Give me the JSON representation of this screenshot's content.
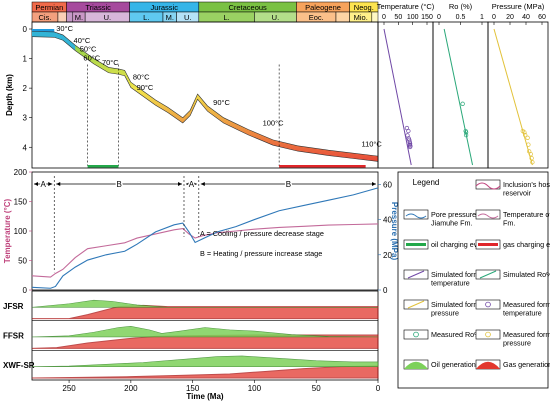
{
  "chart_data": {
    "type": "line",
    "x_axis": {
      "label": "Time (Ma)",
      "ticks": [
        250,
        200,
        150,
        100,
        50,
        0
      ],
      "range": [
        280,
        0
      ]
    },
    "stratigraphy": [
      {
        "name": "Permian",
        "start": 280,
        "end": 252,
        "color": "#f06a4a"
      },
      {
        "name": "Triassic",
        "start": 252,
        "end": 201,
        "color": "#a64a9d"
      },
      {
        "name": "Jurassic",
        "start": 201,
        "end": 145,
        "color": "#36b5e8"
      },
      {
        "name": "Cretaceous",
        "start": 145,
        "end": 66,
        "color": "#7ac143"
      },
      {
        "name": "Paleogene",
        "start": 66,
        "end": 23,
        "color": "#f7a35c"
      },
      {
        "name": "Neog.",
        "start": 23,
        "end": 0,
        "color": "#fde44f"
      }
    ],
    "sub_stages": [
      {
        "name": "Cis.",
        "start": 280,
        "end": 259,
        "color": "#f3a07e"
      },
      {
        "name": "",
        "start": 259,
        "end": 252,
        "color": "#fbcfb6"
      },
      {
        "name": "",
        "start": 252,
        "end": 247,
        "color": "#c69ac8"
      },
      {
        "name": "M.",
        "start": 247,
        "end": 237,
        "color": "#c997c6"
      },
      {
        "name": "U.",
        "start": 237,
        "end": 201,
        "color": "#d7b6d9"
      },
      {
        "name": "L.",
        "start": 201,
        "end": 174,
        "color": "#5fc9f0"
      },
      {
        "name": "M.",
        "start": 174,
        "end": 163,
        "color": "#86d4f2"
      },
      {
        "name": "U.",
        "start": 163,
        "end": 145,
        "color": "#b5e2f7"
      },
      {
        "name": "L.",
        "start": 145,
        "end": 100,
        "color": "#9ad163"
      },
      {
        "name": "U.",
        "start": 100,
        "end": 66,
        "color": "#b4de8a"
      },
      {
        "name": "Eoc.",
        "start": 66,
        "end": 34,
        "color": "#fbc08a"
      },
      {
        "name": "",
        "start": 34,
        "end": 23,
        "color": "#fdd4a5"
      },
      {
        "name": "Mio.",
        "start": 23,
        "end": 5,
        "color": "#fef08a"
      },
      {
        "name": "",
        "start": 5,
        "end": 0,
        "color": "#fff8c4"
      }
    ],
    "burial": {
      "ylabel": "Depth (km)",
      "y_ticks": [
        0,
        1,
        2,
        3,
        4
      ],
      "ylim": [
        0,
        4.6
      ],
      "top_curve": [
        [
          280,
          0.08
        ],
        [
          262,
          0.1
        ],
        [
          255,
          0.2
        ],
        [
          245,
          0.55
        ],
        [
          230,
          1.0
        ],
        [
          218,
          1.3
        ],
        [
          210,
          1.35
        ],
        [
          205,
          1.4
        ],
        [
          200,
          1.8
        ],
        [
          190,
          2.1
        ],
        [
          180,
          2.4
        ],
        [
          170,
          2.65
        ],
        [
          158,
          3.0
        ],
        [
          152,
          2.75
        ],
        [
          146,
          2.2
        ],
        [
          138,
          2.6
        ],
        [
          125,
          3.0
        ],
        [
          105,
          3.4
        ],
        [
          85,
          3.75
        ],
        [
          65,
          3.95
        ],
        [
          40,
          4.1
        ],
        [
          20,
          4.2
        ],
        [
          0,
          4.3
        ]
      ],
      "thickness": 0.18,
      "temperature_labels": [
        {
          "t": 262,
          "d": 0.1,
          "text": "30°C"
        },
        {
          "t": 248,
          "d": 0.5,
          "text": "40°C"
        },
        {
          "t": 243,
          "d": 0.8,
          "text": "50°C"
        },
        {
          "t": 240,
          "d": 1.1,
          "text": "60°C"
        },
        {
          "t": 225,
          "d": 1.25,
          "text": "70°C"
        },
        {
          "t": 200,
          "d": 1.75,
          "text": "80°C"
        },
        {
          "t": 197,
          "d": 2.1,
          "text": "90°C"
        },
        {
          "t": 135,
          "d": 2.6,
          "text": "90°C"
        },
        {
          "t": 95,
          "d": 3.3,
          "text": "100°C"
        },
        {
          "t": 15,
          "d": 4.0,
          "text": "110°C"
        }
      ],
      "oil_charging": [
        235,
        210
      ],
      "gas_charging": [
        80,
        10
      ]
    },
    "temperature_pressure": {
      "ylabel_left": "Temperature (°C)",
      "ylabel_right": "Pressure (MPa)",
      "y_left_ticks": [
        0,
        50,
        100,
        150,
        200
      ],
      "ylim_left": [
        0,
        200
      ],
      "y_right_ticks": [
        0,
        20,
        40,
        60
      ],
      "ylim_right": [
        0,
        67
      ],
      "temperature": [
        [
          280,
          24
        ],
        [
          265,
          22
        ],
        [
          261,
          28
        ],
        [
          255,
          35
        ],
        [
          245,
          55
        ],
        [
          235,
          70
        ],
        [
          220,
          75
        ],
        [
          205,
          80
        ],
        [
          195,
          88
        ],
        [
          180,
          95
        ],
        [
          165,
          102
        ],
        [
          158,
          104
        ],
        [
          153,
          95
        ],
        [
          148,
          88
        ],
        [
          142,
          92
        ],
        [
          130,
          97
        ],
        [
          115,
          100
        ],
        [
          100,
          103
        ],
        [
          80,
          106
        ],
        [
          60,
          108
        ],
        [
          40,
          110
        ],
        [
          20,
          111
        ],
        [
          0,
          112
        ]
      ],
      "pressure": [
        [
          280,
          1.5
        ],
        [
          265,
          1
        ],
        [
          261,
          2
        ],
        [
          255,
          8
        ],
        [
          245,
          13
        ],
        [
          235,
          17
        ],
        [
          220,
          20
        ],
        [
          205,
          22
        ],
        [
          195,
          26
        ],
        [
          180,
          33
        ],
        [
          165,
          37
        ],
        [
          158,
          38
        ],
        [
          153,
          33
        ],
        [
          148,
          27
        ],
        [
          142,
          29
        ],
        [
          130,
          33
        ],
        [
          115,
          36
        ],
        [
          100,
          40
        ],
        [
          80,
          45
        ],
        [
          60,
          48
        ],
        [
          40,
          51
        ],
        [
          20,
          54
        ],
        [
          0,
          58
        ]
      ],
      "stages": [
        {
          "label": "A",
          "start": 280,
          "end": 262
        },
        {
          "label": "B",
          "start": 262,
          "end": 157
        },
        {
          "label": "A",
          "start": 157,
          "end": 145
        },
        {
          "label": "B",
          "start": 145,
          "end": 0
        }
      ],
      "annotation_a": "A = Cooling / pressure decrease stage",
      "annotation_b": "B = Heating / pressure increase stage"
    },
    "generation": {
      "rows": [
        {
          "name": "JFSR",
          "oil": [
            [
              280,
              0
            ],
            [
              250,
              0.3
            ],
            [
              230,
              0.6
            ],
            [
              215,
              0.5
            ],
            [
              195,
              0.2
            ],
            [
              170,
              0
            ],
            [
              0,
              0
            ]
          ],
          "gas": [
            [
              280,
              0
            ],
            [
              250,
              0
            ],
            [
              235,
              0.3
            ],
            [
              210,
              0.9
            ],
            [
              190,
              1
            ],
            [
              170,
              0.9
            ],
            [
              140,
              0.9
            ],
            [
              100,
              0.9
            ],
            [
              50,
              0.9
            ],
            [
              0,
              0.9
            ]
          ]
        },
        {
          "name": "FFSR",
          "oil": [
            [
              280,
              0
            ],
            [
              250,
              0.1
            ],
            [
              230,
              0.4
            ],
            [
              210,
              0.8
            ],
            [
              200,
              0.9
            ],
            [
              185,
              0.6
            ],
            [
              175,
              0.3
            ],
            [
              160,
              0.5
            ],
            [
              140,
              0.8
            ],
            [
              120,
              0.6
            ],
            [
              100,
              0.5
            ],
            [
              70,
              0.2
            ],
            [
              40,
              0.05
            ],
            [
              0,
              0
            ]
          ],
          "gas": [
            [
              280,
              0
            ],
            [
              260,
              0.05
            ],
            [
              235,
              0.4
            ],
            [
              200,
              0.75
            ],
            [
              180,
              0.9
            ],
            [
              150,
              0.95
            ],
            [
              100,
              1
            ],
            [
              50,
              1
            ],
            [
              0,
              1
            ]
          ]
        },
        {
          "name": "XWF-SR",
          "oil": [
            [
              280,
              0
            ],
            [
              250,
              0.05
            ],
            [
              220,
              0.2
            ],
            [
              190,
              0.35
            ],
            [
              160,
              0.6
            ],
            [
              130,
              0.85
            ],
            [
              110,
              0.9
            ],
            [
              80,
              0.7
            ],
            [
              50,
              0.5
            ],
            [
              20,
              0.4
            ],
            [
              0,
              0.4
            ]
          ],
          "gas": [
            [
              280,
              0
            ],
            [
              240,
              0.05
            ],
            [
              200,
              0.1
            ],
            [
              160,
              0.2
            ],
            [
              120,
              0.3
            ],
            [
              90,
              0.5
            ],
            [
              60,
              0.7
            ],
            [
              30,
              0.85
            ],
            [
              0,
              0.9
            ]
          ]
        }
      ],
      "extra_gas_peak": [
        [
          280,
          0
        ],
        [
          210,
          0.02
        ],
        [
          160,
          0.2
        ],
        [
          130,
          0.6
        ],
        [
          110,
          0.75
        ],
        [
          90,
          0.6
        ],
        [
          70,
          0.3
        ],
        [
          50,
          0.1
        ],
        [
          0,
          0
        ]
      ]
    },
    "profiles": [
      {
        "title": "Temperature (°C)",
        "ticks": [
          0,
          50,
          100,
          150
        ],
        "max": 150,
        "color": "#7048a6",
        "line": [
          [
            0,
            0
          ],
          [
            95,
            1.0
          ]
        ],
        "points": [
          [
            80,
            3.35
          ],
          [
            85,
            3.45
          ],
          [
            82,
            3.6
          ],
          [
            86,
            3.7
          ],
          [
            88,
            3.75
          ],
          [
            90,
            3.82
          ],
          [
            91,
            3.88
          ],
          [
            90,
            3.92
          ],
          [
            92,
            3.96
          ],
          [
            91,
            3.99
          ]
        ]
      },
      {
        "title": "Ro (%)",
        "ticks": [
          0,
          0.5,
          1.0
        ],
        "max": 1.0,
        "color": "#2aa879",
        "line": [
          [
            0.12,
            0
          ],
          [
            0.78,
            1.0
          ]
        ],
        "points": [
          [
            0.55,
            0.55
          ],
          [
            0.62,
            0.75
          ],
          [
            0.63,
            0.76
          ],
          [
            0.63,
            0.78
          ]
        ]
      },
      {
        "title": "Pressure (MPa)",
        "ticks": [
          0,
          20,
          40,
          60
        ],
        "max": 60,
        "color": "#e2c23a",
        "line": [
          [
            0,
            0
          ],
          [
            48,
            1.0
          ]
        ],
        "points": [
          [
            36,
            0.75
          ],
          [
            38,
            0.76
          ],
          [
            39,
            0.78
          ],
          [
            42,
            0.8
          ],
          [
            43,
            0.85
          ],
          [
            44,
            0.9
          ],
          [
            46,
            0.92
          ],
          [
            47,
            0.95
          ],
          [
            48,
            0.98
          ]
        ]
      }
    ],
    "legend": {
      "title": "Legend",
      "items": [
        {
          "kind": "wave",
          "label": "Inclusion's host reservoir"
        },
        {
          "kind": "lineblue",
          "label": "Pore pressure of Jiamuhe Fm."
        },
        {
          "kind": "linepink",
          "label": "Temperature of Jiamuhe Fm."
        },
        {
          "kind": "greenbar",
          "label": "oil charging event"
        },
        {
          "kind": "redbar",
          "label": "gas charging event"
        },
        {
          "kind": "purpleline",
          "label": "Simulated formation temperature"
        },
        {
          "kind": "greenline",
          "label": "Simulated Ro%"
        },
        {
          "kind": "yellowline",
          "label": "Simulated formation pressure"
        },
        {
          "kind": "purplecircle",
          "label": "Measured formation temperature"
        },
        {
          "kind": "greencircle",
          "label": "Measured Ro%"
        },
        {
          "kind": "yellowcircle",
          "label": "Measured formation pressure"
        },
        {
          "kind": "oilrate",
          "label": "Oil generation rate"
        },
        {
          "kind": "gasrate",
          "label": "Gas generation rate"
        }
      ]
    }
  }
}
